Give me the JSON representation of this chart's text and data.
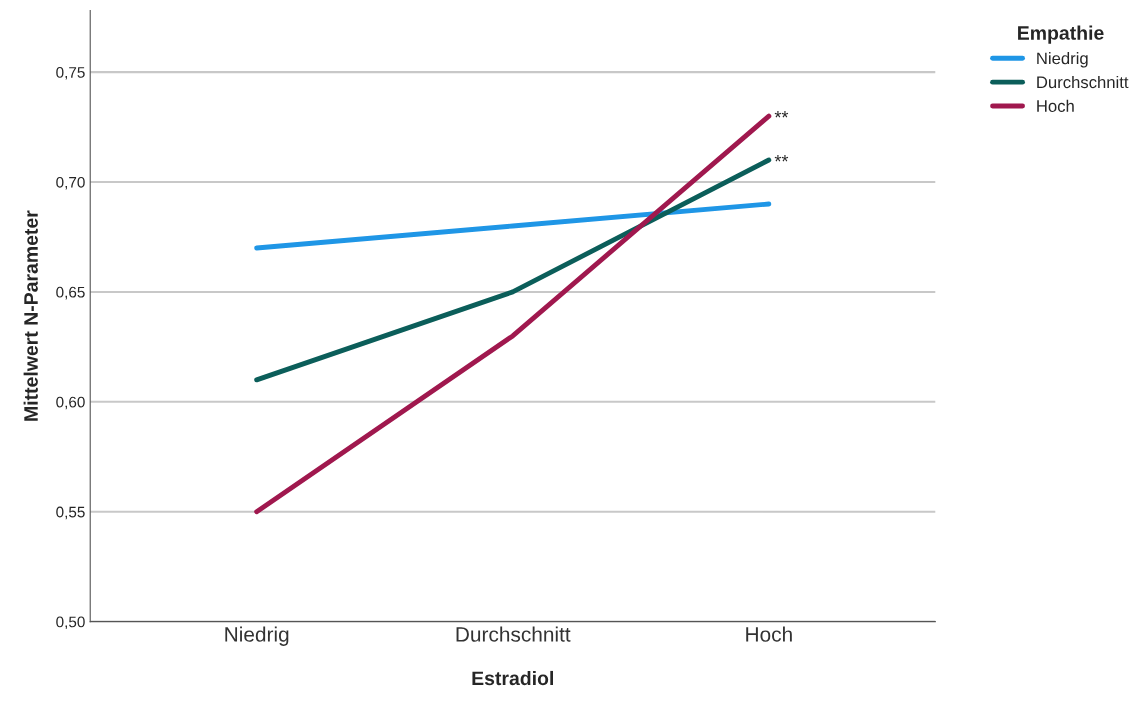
{
  "chart_data": {
    "type": "line",
    "xlabel": "Estradiol",
    "ylabel": "Mittelwert N-Parameter",
    "legend_title": "Empathie",
    "categories": [
      "Niedrig",
      "Durchschnitt",
      "Hoch"
    ],
    "series": [
      {
        "name": "Niedrig",
        "color": "#1f96e6",
        "values": [
          0.67,
          0.68,
          0.69
        ]
      },
      {
        "name": "Durchschnitt",
        "color": "#0b5e5a",
        "values": [
          0.61,
          0.65,
          0.71
        ]
      },
      {
        "name": "Hoch",
        "color": "#a0184e",
        "values": [
          0.55,
          0.63,
          0.73
        ]
      }
    ],
    "ylim": [
      0.5,
      0.778
    ],
    "yticks": [
      {
        "value": 0.5,
        "label": "0,50"
      },
      {
        "value": 0.55,
        "label": "0,55"
      },
      {
        "value": 0.6,
        "label": "0,60"
      },
      {
        "value": 0.65,
        "label": "0,65"
      },
      {
        "value": 0.7,
        "label": "0,70"
      },
      {
        "value": 0.75,
        "label": "0,75"
      }
    ],
    "grid": "y",
    "legend": "top right",
    "marker": "none",
    "line_style": "solid",
    "annotations": [
      {
        "text": "**",
        "x": "Hoch",
        "y": 0.73
      },
      {
        "text": "**",
        "x": "Hoch",
        "y": 0.71
      }
    ]
  }
}
